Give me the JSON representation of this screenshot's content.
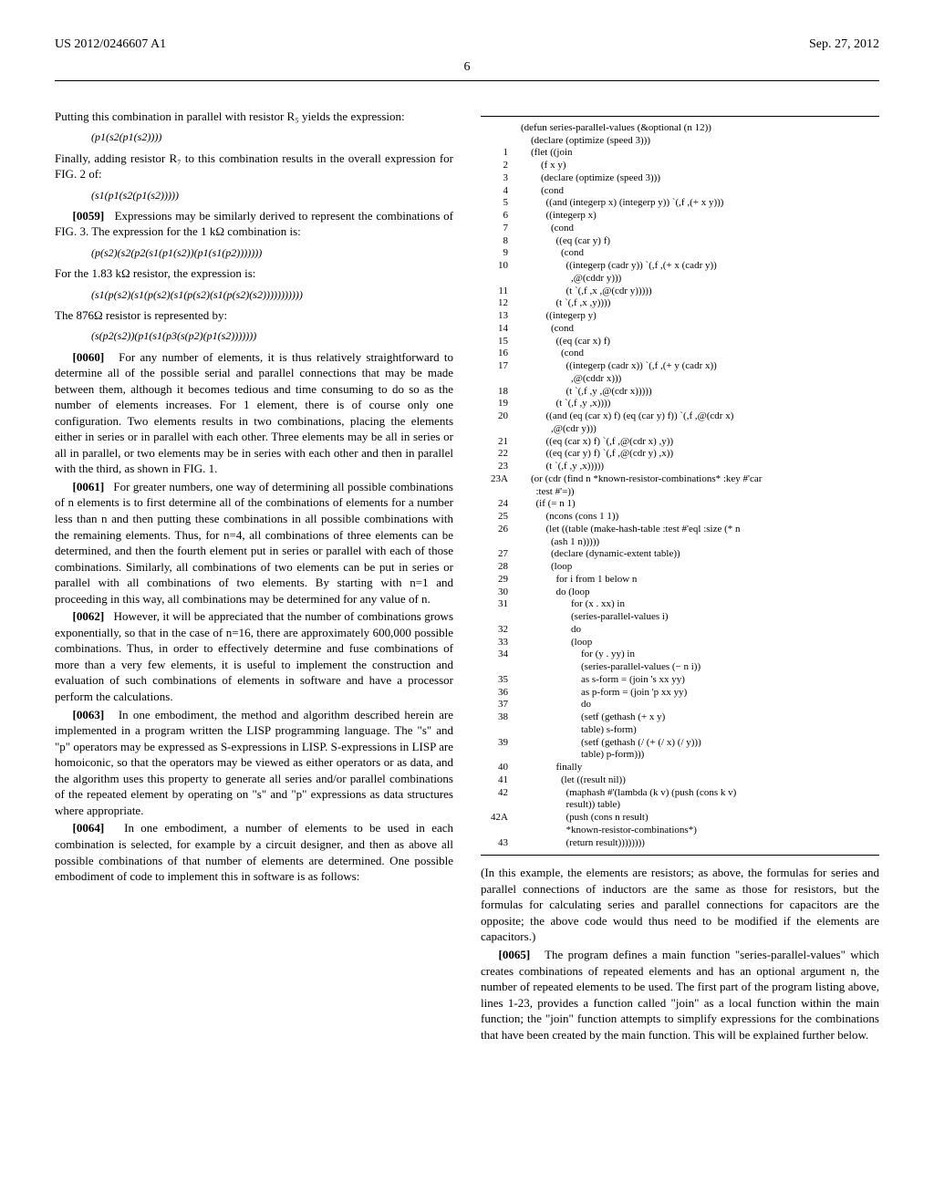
{
  "header": {
    "left": "US 2012/0246607 A1",
    "right": "Sep. 27, 2012",
    "page": "6"
  },
  "col1": {
    "p1": "Putting this combination in parallel with resistor R₅ yields the expression:",
    "expr1": "(p1(s2(p1(s2))))",
    "p2": "Finally, adding resistor R₇ to this combination results in the overall expression for FIG. 2 of:",
    "expr2": "(s1(p1(s2(p1(s2)))))",
    "p59_label": "[0059]",
    "p59": "Expressions may be similarly derived to represent the combinations of FIG. 3. The expression for the 1 kΩ combination is:",
    "expr3": "(p(s2)(s2(p2(s1(p1(s2))(p1(s1(p2)))))))",
    "p3": "For the 1.83 kΩ resistor, the expression is:",
    "expr4": "(s1(p(s2)(s1(p(s2)(s1(p(s2)(s1(p(s2)(s2)))))))))))",
    "p4": "The 876Ω resistor is represented by:",
    "expr5": "(s(p2(s2))(p1(s1(p3(s(p2)(p1(s2)))))))",
    "p60_label": "[0060]",
    "p60": "For any number of elements, it is thus relatively straightforward to determine all of the possible serial and parallel connections that may be made between them, although it becomes tedious and time consuming to do so as the number of elements increases. For 1 element, there is of course only one configuration. Two elements results in two combinations, placing the elements either in series or in parallel with each other. Three elements may be all in series or all in parallel, or two elements may be in series with each other and then in parallel with the third, as shown in FIG. 1.",
    "p61_label": "[0061]",
    "p61": "For greater numbers, one way of determining all possible combinations of n elements is to first determine all of the combinations of elements for a number less than n and then putting these combinations in all possible combinations with the remaining elements. Thus, for n=4, all combinations of three elements can be determined, and then the fourth element put in series or parallel with each of those combinations. Similarly, all combinations of two elements can be put in series or parallel with all combinations of two elements. By starting with n=1 and proceeding in this way, all combinations may be determined for any value of n.",
    "p62_label": "[0062]",
    "p62": "However, it will be appreciated that the number of combinations grows exponentially, so that in the case of n=16, there are approximately 600,000 possible combinations. Thus, in order to effectively determine and fuse combinations of more than a very few elements, it is useful to implement the construction and evaluation of such combinations of elements in software and have a processor perform the calculations.",
    "p63_label": "[0063]",
    "p63": "In one embodiment, the method and algorithm described herein are implemented in a program written the LISP programming language. The \"s\" and \"p\" operators may be expressed as S-expressions in LISP. S-expressions in LISP are homoiconic, so that the operators may be viewed as either operators or as data, and the algorithm uses this property to generate all series and/or parallel combinations of the repeated element by operating on \"s\" and \"p\" expressions as data structures where appropriate.",
    "p64_label": "[0064]",
    "p64": "In one embodiment, a number of elements to be used in each combination is selected, for example by a circuit designer, and then as above all possible combinations of that number of elements are determined. One possible embodiment of code to implement this in software is as follows:"
  },
  "code": [
    {
      "n": "",
      "t": "(defun series-parallel-values (&optional (n 12))"
    },
    {
      "n": "",
      "t": "    (declare (optimize (speed 3)))"
    },
    {
      "n": "1",
      "t": "    (flet ((join"
    },
    {
      "n": "2",
      "t": "        (f x y)"
    },
    {
      "n": "3",
      "t": "        (declare (optimize (speed 3)))"
    },
    {
      "n": "4",
      "t": "        (cond"
    },
    {
      "n": "5",
      "t": "          ((and (integerp x) (integerp y)) `(,f ,(+ x y)))"
    },
    {
      "n": "6",
      "t": "          ((integerp x)"
    },
    {
      "n": "7",
      "t": "            (cond"
    },
    {
      "n": "8",
      "t": "              ((eq (car y) f)"
    },
    {
      "n": "9",
      "t": "                (cond"
    },
    {
      "n": "10",
      "t": "                  ((integerp (cadr y)) `(,f ,(+ x (cadr y))"
    },
    {
      "n": "",
      "t": "                    ,@(cddr y)))"
    },
    {
      "n": "11",
      "t": "                  (t `(,f ,x ,@(cdr y)))))"
    },
    {
      "n": "12",
      "t": "              (t `(,f ,x ,y))))"
    },
    {
      "n": "13",
      "t": "          ((integerp y)"
    },
    {
      "n": "14",
      "t": "            (cond"
    },
    {
      "n": "15",
      "t": "              ((eq (car x) f)"
    },
    {
      "n": "16",
      "t": "                (cond"
    },
    {
      "n": "17",
      "t": "                  ((integerp (cadr x)) `(,f ,(+ y (cadr x))"
    },
    {
      "n": "",
      "t": "                    ,@(cddr x)))"
    },
    {
      "n": "18",
      "t": "                  (t `(,f ,y ,@(cdr x)))))"
    },
    {
      "n": "19",
      "t": "              (t `(,f ,y ,x))))"
    },
    {
      "n": "20",
      "t": "          ((and (eq (car x) f) (eq (car y) f)) `(,f ,@(cdr x)"
    },
    {
      "n": "",
      "t": "            ,@(cdr y)))"
    },
    {
      "n": "21",
      "t": "          ((eq (car x) f) `(,f ,@(cdr x) ,y))"
    },
    {
      "n": "22",
      "t": "          ((eq (car y) f) `(,f ,@(cdr y) ,x))"
    },
    {
      "n": "23",
      "t": "          (t `(,f ,y ,x)))))"
    },
    {
      "n": "23A",
      "t": "    (or (cdr (find n *known-resistor-combinations* :key #'car"
    },
    {
      "n": "",
      "t": "      :test #'=))"
    },
    {
      "n": "24",
      "t": "      (if (= n 1)"
    },
    {
      "n": "25",
      "t": "          (ncons (cons 1 1))"
    },
    {
      "n": "26",
      "t": "          (let ((table (make-hash-table :test #'eql :size (* n"
    },
    {
      "n": "",
      "t": "            (ash 1 n)))))"
    },
    {
      "n": "27",
      "t": "            (declare (dynamic-extent table))"
    },
    {
      "n": "28",
      "t": "            (loop"
    },
    {
      "n": "29",
      "t": "              for i from 1 below n"
    },
    {
      "n": "30",
      "t": "              do (loop"
    },
    {
      "n": "31",
      "t": "                    for (x . xx) in"
    },
    {
      "n": "",
      "t": "                    (series-parallel-values i)"
    },
    {
      "n": "32",
      "t": "                    do"
    },
    {
      "n": "33",
      "t": "                    (loop"
    },
    {
      "n": "34",
      "t": "                        for (y . yy) in"
    },
    {
      "n": "",
      "t": "                        (series-parallel-values (− n i))"
    },
    {
      "n": "35",
      "t": "                        as s-form = (join 's xx yy)"
    },
    {
      "n": "36",
      "t": "                        as p-form = (join 'p xx yy)"
    },
    {
      "n": "37",
      "t": "                        do"
    },
    {
      "n": "38",
      "t": "                        (setf (gethash (+ x y)"
    },
    {
      "n": "",
      "t": "                        table) s-form)"
    },
    {
      "n": "39",
      "t": "                        (setf (gethash (/ (+ (/ x) (/ y)))"
    },
    {
      "n": "",
      "t": "                        table) p-form)))"
    },
    {
      "n": "40",
      "t": "              finally"
    },
    {
      "n": "41",
      "t": "                (let ((result nil))"
    },
    {
      "n": "42",
      "t": "                  (maphash #'(lambda (k v) (push (cons k v)"
    },
    {
      "n": "",
      "t": "                  result)) table)"
    },
    {
      "n": "42A",
      "t": "                  (push (cons n result)"
    },
    {
      "n": "",
      "t": "                  *known-resistor-combinations*)"
    },
    {
      "n": "43",
      "t": "                  (return result))))))))"
    }
  ],
  "col2": {
    "after_code_note": "(In this example, the elements are resistors; as above, the formulas for series and parallel connections of inductors are the same as those for resistors, but the formulas for calculating series and parallel connections for capacitors are the opposite; the above code would thus need to be modified if the elements are capacitors.)",
    "p65_label": "[0065]",
    "p65": "The program defines a main function \"series-parallel-values\" which creates combinations of repeated elements and has an optional argument n, the number of repeated elements to be used. The first part of the program listing above, lines 1-23, provides a function called \"join\" as a local function within the main function; the \"join\" function attempts to simplify expressions for the combinations that have been created by the main function. This will be explained further below."
  }
}
